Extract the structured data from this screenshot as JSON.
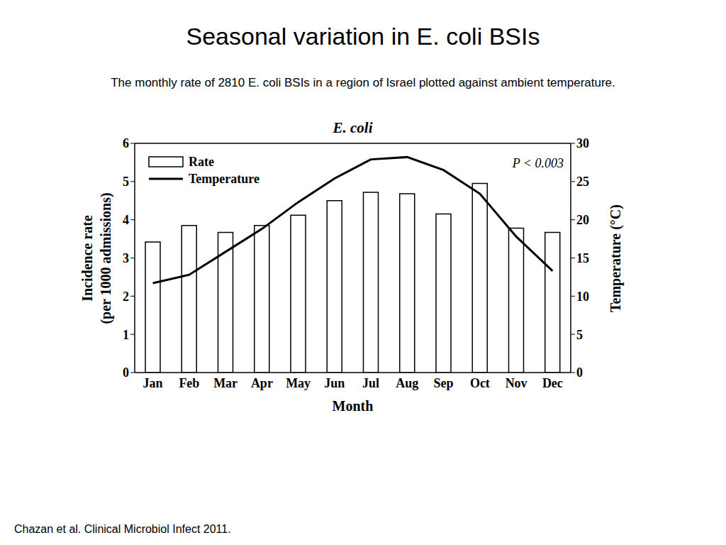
{
  "chart_data": {
    "type": "bar",
    "title": "Seasonal variation in E. coli BSIs",
    "subtitle": "The monthly rate of 2810 E. coli BSIs in a region of Israel plotted against ambient temperature.",
    "inner_title": "E. coli",
    "annotation": "P < 0.003",
    "source": "Chazan et al. Clinical Microbiol Infect 2011.",
    "xlabel": "Month",
    "ylabel": [
      "Incidence rate",
      "(per 1000 admissions)"
    ],
    "y2label": "Temperature (°C)",
    "categories": [
      "Jan",
      "Feb",
      "Mar",
      "Apr",
      "May",
      "Jun",
      "Jul",
      "Aug",
      "Sep",
      "Oct",
      "Nov",
      "Dec"
    ],
    "series": [
      {
        "name": "Rate",
        "type": "bar",
        "color": "#ffffff",
        "values": [
          3.42,
          3.85,
          3.67,
          3.85,
          4.12,
          4.5,
          4.72,
          4.68,
          4.15,
          4.95,
          3.78,
          3.67
        ]
      },
      {
        "name": "Temperature",
        "type": "line",
        "color": "#000000",
        "axis": "y2",
        "values": [
          11.7,
          12.8,
          15.8,
          18.8,
          22.3,
          25.4,
          27.9,
          28.2,
          26.5,
          23.4,
          17.8,
          13.3
        ]
      }
    ],
    "ylim": [
      0,
      6
    ],
    "yticks": [
      0,
      1,
      2,
      3,
      4,
      5,
      6
    ],
    "y2lim": [
      0,
      30
    ],
    "y2ticks": [
      0,
      5,
      10,
      15,
      20,
      25,
      30
    ],
    "legend": "upper left",
    "grid": false
  }
}
